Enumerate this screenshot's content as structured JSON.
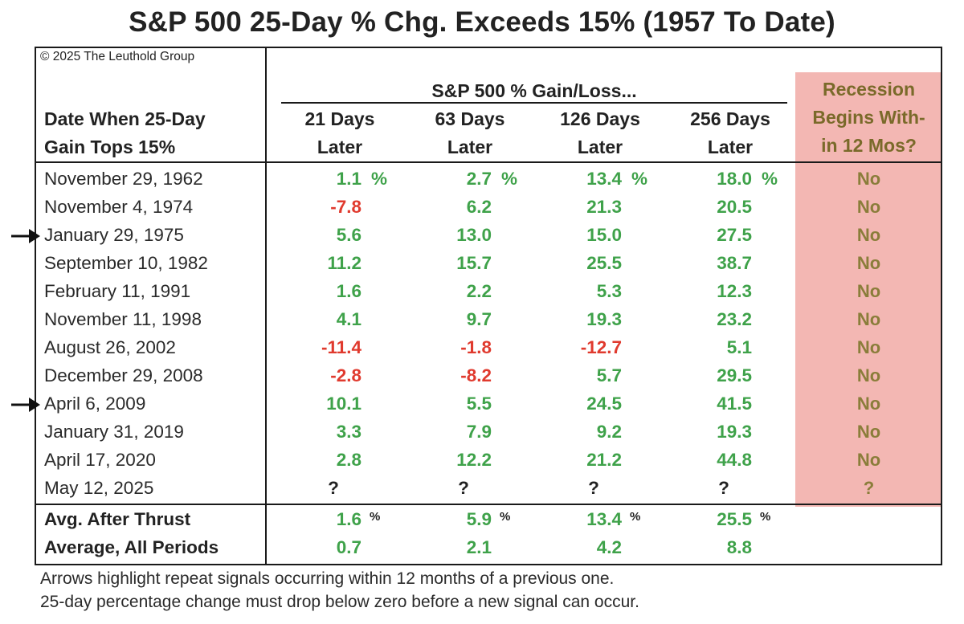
{
  "title": "S&P 500 25-Day % Chg. Exceeds 15% (1957 To Date)",
  "copyright": "© 2025 The Leuthold Group",
  "header": {
    "row_label_line1": "Date When 25-Day",
    "row_label_line2": "Gain Tops 15%",
    "group_label": "S&P 500 % Gain/Loss...",
    "columns": [
      {
        "line1": "21 Days",
        "line2": "Later"
      },
      {
        "line1": "63 Days",
        "line2": "Later"
      },
      {
        "line1": "126 Days",
        "line2": "Later"
      },
      {
        "line1": "256 Days",
        "line2": "Later"
      }
    ],
    "recession_line1": "Recession",
    "recession_line2": "Begins With-",
    "recession_line3": "in 12 Mos?"
  },
  "pct_sign": "%",
  "colors": {
    "positive": "#3fa24a",
    "negative": "#e03a2e",
    "recession_shade": "#f3b7b3"
  },
  "chart_data": {
    "type": "table",
    "title": "S&P 500 25-Day % Chg. Exceeds 15% (1957 To Date)",
    "columns": [
      "Date When 25-Day Gain Tops 15%",
      "21 Days Later",
      "63 Days Later",
      "126 Days Later",
      "256 Days Later",
      "Recession Begins Within 12 Mos?"
    ],
    "rows": [
      {
        "date": "November 29, 1962",
        "values": [
          "1.1",
          "2.7",
          "13.4",
          "18.0"
        ],
        "recession": "No",
        "arrow": false,
        "pct": true
      },
      {
        "date": "November 4, 1974",
        "values": [
          "-7.8",
          "6.2",
          "21.3",
          "20.5"
        ],
        "recession": "No",
        "arrow": false
      },
      {
        "date": "January 29, 1975",
        "values": [
          "5.6",
          "13.0",
          "15.0",
          "27.5"
        ],
        "recession": "No",
        "arrow": true
      },
      {
        "date": "September 10, 1982",
        "values": [
          "11.2",
          "15.7",
          "25.5",
          "38.7"
        ],
        "recession": "No",
        "arrow": false
      },
      {
        "date": "February 11, 1991",
        "values": [
          "1.6",
          "2.2",
          "5.3",
          "12.3"
        ],
        "recession": "No",
        "arrow": false
      },
      {
        "date": "November 11, 1998",
        "values": [
          "4.1",
          "9.7",
          "19.3",
          "23.2"
        ],
        "recession": "No",
        "arrow": false
      },
      {
        "date": "August 26, 2002",
        "values": [
          "-11.4",
          "-1.8",
          "-12.7",
          "5.1"
        ],
        "recession": "No",
        "arrow": false
      },
      {
        "date": "December 29, 2008",
        "values": [
          "-2.8",
          "-8.2",
          "5.7",
          "29.5"
        ],
        "recession": "No",
        "arrow": false
      },
      {
        "date": "April 6, 2009",
        "values": [
          "10.1",
          "5.5",
          "24.5",
          "41.5"
        ],
        "recession": "No",
        "arrow": true
      },
      {
        "date": "January 31, 2019",
        "values": [
          "3.3",
          "7.9",
          "9.2",
          "19.3"
        ],
        "recession": "No",
        "arrow": false
      },
      {
        "date": "April 17, 2020",
        "values": [
          "2.8",
          "12.2",
          "21.2",
          "44.8"
        ],
        "recession": "No",
        "arrow": false
      },
      {
        "date": "May 12, 2025",
        "values": [
          "?",
          "?",
          "?",
          "?"
        ],
        "recession": "?",
        "arrow": false
      }
    ],
    "summary": [
      {
        "label": "Avg. After Thrust",
        "values": [
          "1.6",
          "5.9",
          "13.4",
          "25.5"
        ],
        "pct": true
      },
      {
        "label": "Average, All Periods",
        "values": [
          "0.7",
          "2.1",
          "4.2",
          "8.8"
        ],
        "pct": false
      }
    ]
  },
  "footnotes": [
    "Arrows highlight repeat signals occurring within 12 months of a previous one.",
    "25-day percentage change must drop below zero before a new signal can occur."
  ]
}
